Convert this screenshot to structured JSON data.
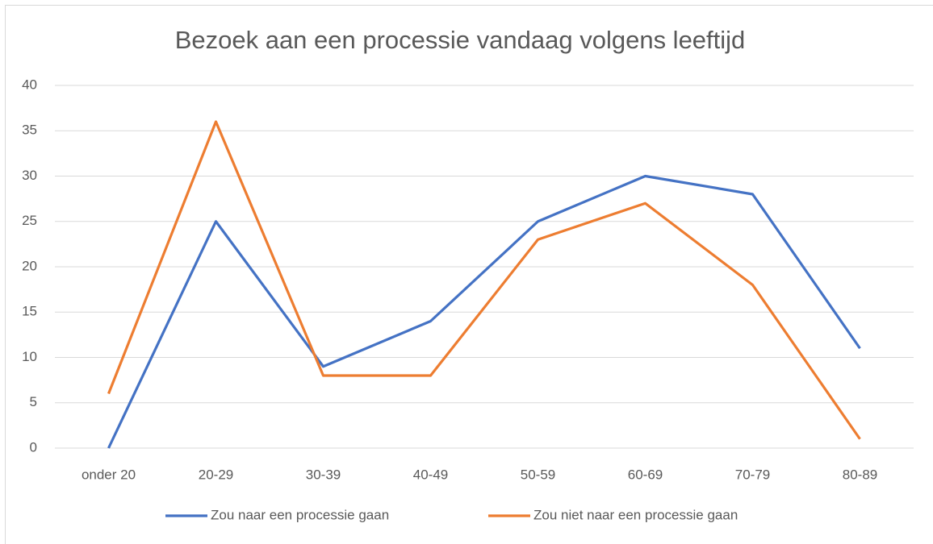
{
  "chart_data": {
    "type": "line",
    "title": "Bezoek aan een processie vandaag volgens leeftijd",
    "categories": [
      "onder 20",
      "20-29",
      "30-39",
      "40-49",
      "50-59",
      "60-69",
      "70-79",
      "80-89"
    ],
    "series": [
      {
        "name": "Zou naar een processie gaan",
        "color": "#4472c4",
        "values": [
          0,
          25,
          9,
          14,
          25,
          30,
          28,
          11
        ]
      },
      {
        "name": "Zou niet naar een processie gaan",
        "color": "#ed7d31",
        "values": [
          6,
          36,
          8,
          8,
          23,
          27,
          18,
          1
        ]
      }
    ],
    "ylim": [
      0,
      40
    ],
    "yticks": [
      0,
      5,
      10,
      15,
      20,
      25,
      30,
      35,
      40
    ],
    "grid": true,
    "legend": "bottom"
  }
}
